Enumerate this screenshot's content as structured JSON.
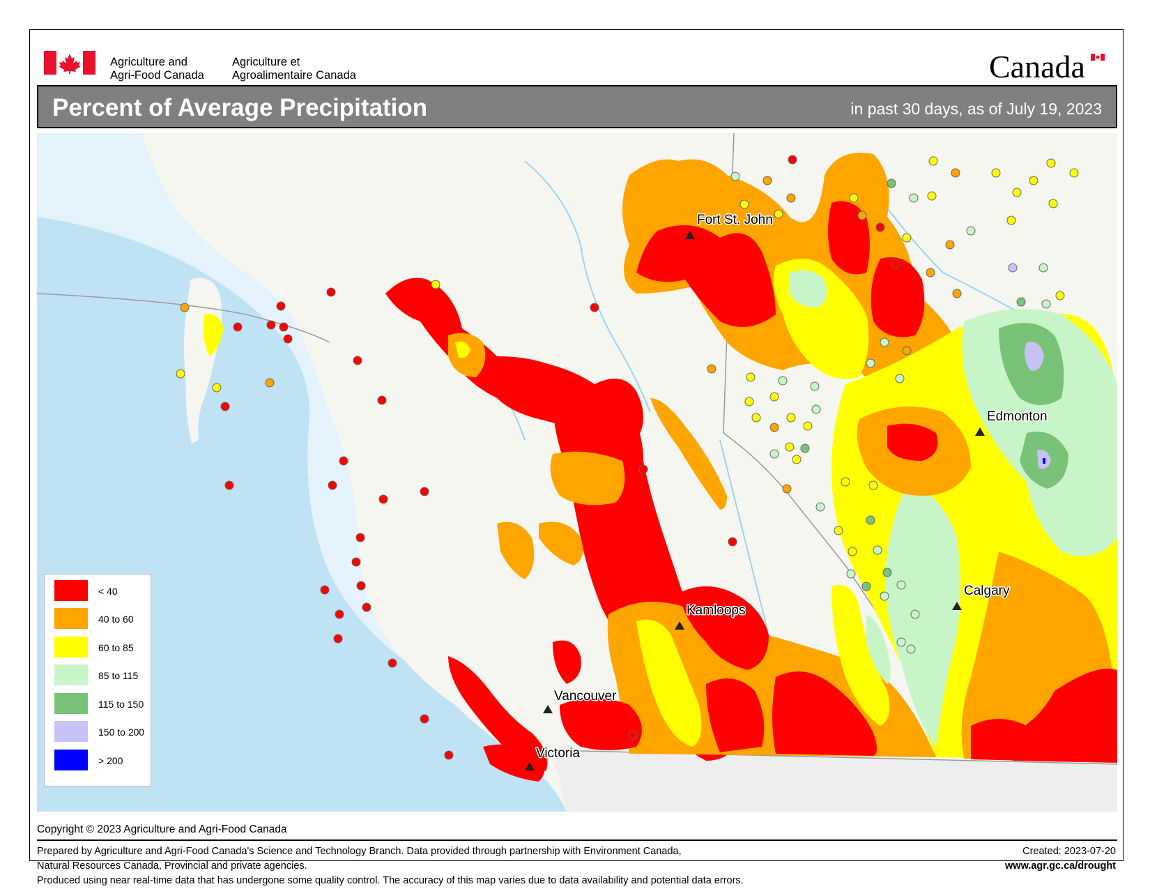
{
  "header": {
    "dept_en_line1": "Agriculture and",
    "dept_en_line2": "Agri-Food Canada",
    "dept_fr_line1": "Agriculture et",
    "dept_fr_line2": "Agroalimentaire Canada",
    "wordmark": "Canada"
  },
  "title": "Percent of Average Precipitation",
  "subtitle": "in past 30 days, as of July 19, 2023",
  "legend": [
    {
      "label": "< 40",
      "color": "#ff0000"
    },
    {
      "label": "40 to 60",
      "color": "#ffa500"
    },
    {
      "label": "60 to 85",
      "color": "#ffff00"
    },
    {
      "label": "85 to 115",
      "color": "#c8f5c8"
    },
    {
      "label": "115 to 150",
      "color": "#78c378"
    },
    {
      "label": "150 to 200",
      "color": "#c8c3f5"
    },
    {
      "label": "> 200",
      "color": "#0000ff"
    }
  ],
  "cities": [
    {
      "name": "Fort St. John"
    },
    {
      "name": "Edmonton"
    },
    {
      "name": "Calgary"
    },
    {
      "name": "Kamloops"
    },
    {
      "name": "Vancouver"
    },
    {
      "name": "Victoria"
    }
  ],
  "copyright": "Copyright © 2023 Agriculture and Agri-Food Canada",
  "footer": {
    "line1": "Prepared by Agriculture and Agri-Food Canada's Science and Technology Branch. Data provided through partnership with Environment Canada,",
    "line2": "Natural Resources Canada, Provincial and private agencies.",
    "line3": "Produced using near real-time data that has undergone some quality control. The accuracy of this map varies due to data availability and potential data errors.",
    "created": "Created: 2023-07-20",
    "url": "www.agr.gc.ca/drought"
  },
  "colors": {
    "land": "#f5f5f0",
    "water": "#bfe3f5",
    "title_bar": "#808080"
  }
}
